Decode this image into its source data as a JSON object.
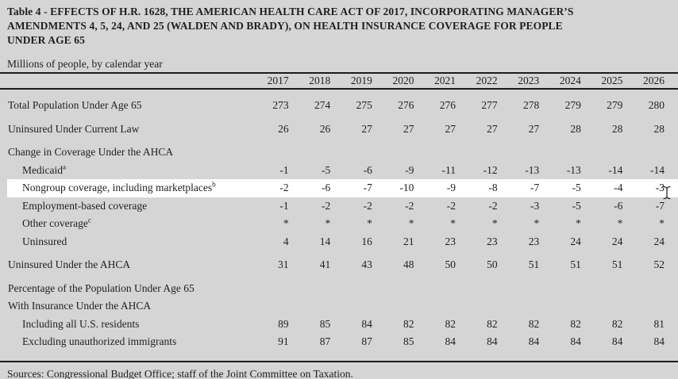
{
  "colors": {
    "page_bg": "#d5d5d5",
    "highlight_bg": "#ffffff",
    "rule_color": "#1c1c1c",
    "text_color": "#1f1f1f"
  },
  "header": {
    "title_lines": [
      "Table 4 - EFFECTS OF H.R. 1628, THE AMERICAN HEALTH CARE ACT OF 2017, INCORPORATING MANAGER’S",
      "AMENDMENTS 4, 5, 24, AND 25 (WALDEN AND BRADY), ON HEALTH INSURANCE COVERAGE FOR PEOPLE",
      "UNDER AGE 65"
    ],
    "subtitle": "Millions of people, by calendar year"
  },
  "table": {
    "years": [
      "2017",
      "2018",
      "2019",
      "2020",
      "2021",
      "2022",
      "2023",
      "2024",
      "2025",
      "2026"
    ],
    "rows": [
      {
        "label": "Total Population Under Age 65",
        "sup": "",
        "indent": 0,
        "gap_before": false,
        "highlight": false,
        "values": [
          "273",
          "274",
          "275",
          "276",
          "276",
          "277",
          "278",
          "279",
          "279",
          "280"
        ]
      },
      {
        "label": "Uninsured Under Current Law",
        "sup": "",
        "indent": 0,
        "gap_before": true,
        "highlight": false,
        "values": [
          "26",
          "26",
          "27",
          "27",
          "27",
          "27",
          "27",
          "28",
          "28",
          "28"
        ]
      },
      {
        "label": "Change in Coverage Under the AHCA",
        "sup": "",
        "indent": 0,
        "gap_before": true,
        "highlight": false,
        "values": []
      },
      {
        "label": "Medicaid",
        "sup": "a",
        "indent": 1,
        "gap_before": false,
        "highlight": false,
        "values": [
          "-1",
          "-5",
          "-6",
          "-9",
          "-11",
          "-12",
          "-13",
          "-13",
          "-14",
          "-14"
        ]
      },
      {
        "label": "Nongroup coverage, including marketplaces",
        "sup": "b",
        "indent": 1,
        "gap_before": false,
        "highlight": true,
        "values": [
          "-2",
          "-6",
          "-7",
          "-10",
          "-9",
          "-8",
          "-7",
          "-5",
          "-4",
          "-3"
        ]
      },
      {
        "label": "Employment-based coverage",
        "sup": "",
        "indent": 1,
        "gap_before": false,
        "highlight": false,
        "values": [
          "-1",
          "-2",
          "-2",
          "-2",
          "-2",
          "-2",
          "-3",
          "-5",
          "-6",
          "-7"
        ]
      },
      {
        "label": "Other coverage",
        "sup": "c",
        "indent": 1,
        "gap_before": false,
        "highlight": false,
        "values": [
          "*",
          "*",
          "*",
          "*",
          "*",
          "*",
          "*",
          "*",
          "*",
          "*"
        ]
      },
      {
        "label": "Uninsured",
        "sup": "",
        "indent": 1,
        "gap_before": false,
        "highlight": false,
        "values": [
          "4",
          "14",
          "16",
          "21",
          "23",
          "23",
          "23",
          "24",
          "24",
          "24"
        ]
      },
      {
        "label": "Uninsured Under the AHCA",
        "sup": "",
        "indent": 0,
        "gap_before": true,
        "highlight": false,
        "values": [
          "31",
          "41",
          "43",
          "48",
          "50",
          "50",
          "51",
          "51",
          "51",
          "52"
        ]
      },
      {
        "label": "Percentage of the Population Under Age 65",
        "sup": "",
        "indent": 0,
        "gap_before": true,
        "highlight": false,
        "values": []
      },
      {
        "label": "With Insurance Under the AHCA",
        "sup": "",
        "indent": 0,
        "gap_before": false,
        "highlight": false,
        "values": []
      },
      {
        "label": "Including all U.S. residents",
        "sup": "",
        "indent": 1,
        "gap_before": false,
        "highlight": false,
        "values": [
          "89",
          "85",
          "84",
          "82",
          "82",
          "82",
          "82",
          "82",
          "82",
          "81"
        ]
      },
      {
        "label": "Excluding unauthorized immigrants",
        "sup": "",
        "indent": 1,
        "gap_before": false,
        "highlight": false,
        "values": [
          "91",
          "87",
          "87",
          "85",
          "84",
          "84",
          "84",
          "84",
          "84",
          "84"
        ]
      }
    ]
  },
  "footer": {
    "sources": "Sources: Congressional Budget Office; staff of the Joint Committee on Taxation."
  },
  "cursor": {
    "type": "i-beam"
  }
}
